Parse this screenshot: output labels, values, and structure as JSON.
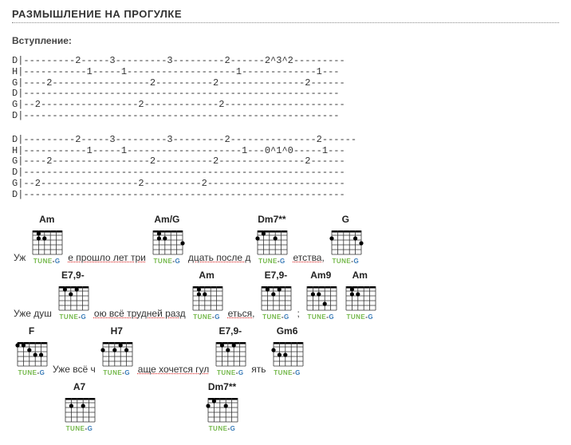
{
  "title": "РАЗМЫШЛЕНИЕ НА ПРОГУЛКЕ",
  "intro_label": "Вступление:",
  "tab1": "D|---------2-----3---------3---------2------2^3^2---------\nH|-----------1-----1-------------------1-------------1---\nG|----2-----------------2----------2---------------2------\nD|-------------------------------------------------------\nG|--2-----------------2-------------2---------------------\nD|-------------------------------------------------------",
  "tab2": "D|---------2-----3---------3---------2---------------2------\nH|-----------1-----1--------------------1---0^1^0-----1---\nG|----2-----------------2----------2---------------2------\nD|--------------------------------------------------------\nG|--2-----------------2----------2------------------------\nD|--------------------------------------------------------",
  "tuneg_text": "TUNE-G",
  "rows": [
    {
      "before": "",
      "items": [
        {
          "type": "lyric",
          "text": "Уж"
        },
        {
          "type": "chord",
          "name": "Am",
          "dots": [
            [
              0,
              1,
              2
            ],
            [
              1,
              2,
              3
            ],
            [
              2,
              2,
              2
            ]
          ]
        },
        {
          "type": "lyric",
          "text": "е прошло лет три",
          "red": true
        },
        {
          "type": "chord",
          "name": "Am/G",
          "dots": [
            [
              0,
              1,
              2
            ],
            [
              1,
              2,
              3
            ],
            [
              2,
              2,
              2
            ],
            [
              3,
              3,
              6
            ]
          ]
        },
        {
          "type": "lyric",
          "text": "дцать после д",
          "red": true
        },
        {
          "type": "chord",
          "name": "Dm7**",
          "dots": [
            [
              0,
              1,
              2
            ],
            [
              1,
              2,
              1
            ],
            [
              2,
              2,
              4
            ]
          ]
        },
        {
          "type": "lyric",
          "text": "етства,",
          "red": true
        },
        {
          "type": "chord",
          "name": "G",
          "dots": [
            [
              0,
              2,
              1
            ],
            [
              1,
              3,
              6
            ],
            [
              2,
              2,
              5
            ]
          ]
        }
      ]
    },
    {
      "before": "",
      "items": [
        {
          "type": "lyric",
          "text": "Уже душ"
        },
        {
          "type": "chord",
          "name": "E7,9-",
          "dots": [
            [
              0,
              1,
              4
            ],
            [
              1,
              2,
              3
            ],
            [
              2,
              1,
              2
            ]
          ]
        },
        {
          "type": "lyric",
          "text": "ою всё трудней разд",
          "red": true
        },
        {
          "type": "chord",
          "name": "Am",
          "dots": [
            [
              0,
              1,
              2
            ],
            [
              1,
              2,
              3
            ],
            [
              2,
              2,
              2
            ]
          ]
        },
        {
          "type": "lyric",
          "text": "еться,",
          "red": true
        },
        {
          "type": "chord",
          "name": "E7,9-",
          "dots": [
            [
              0,
              1,
              4
            ],
            [
              1,
              2,
              3
            ],
            [
              2,
              1,
              2
            ]
          ]
        },
        {
          "type": "lyric",
          "text": ";"
        },
        {
          "type": "chord",
          "name": "Am9",
          "dots": [
            [
              0,
              2,
              3
            ],
            [
              1,
              2,
              2
            ],
            [
              2,
              4,
              4
            ]
          ]
        },
        {
          "type": "chord",
          "name": "Am",
          "dots": [
            [
              0,
              1,
              2
            ],
            [
              1,
              2,
              3
            ],
            [
              2,
              2,
              2
            ]
          ]
        }
      ]
    },
    {
      "before": "",
      "items": [
        {
          "type": "chord",
          "name": "F",
          "dots": [
            [
              0,
              1,
              1
            ],
            [
              0,
              1,
              2
            ],
            [
              1,
              2,
              3
            ],
            [
              2,
              3,
              4
            ],
            [
              2,
              3,
              5
            ]
          ]
        },
        {
          "type": "lyric",
          "text": "Уже всё ч"
        },
        {
          "type": "chord",
          "name": "H7",
          "dots": [
            [
              0,
              1,
              4
            ],
            [
              1,
              2,
              1
            ],
            [
              1,
              2,
              3
            ],
            [
              1,
              2,
              5
            ]
          ]
        },
        {
          "type": "lyric",
          "text": "аще хочется гул",
          "red": true
        },
        {
          "type": "chord",
          "name": "E7,9-",
          "dots": [
            [
              0,
              1,
              4
            ],
            [
              1,
              2,
              3
            ],
            [
              2,
              1,
              2
            ]
          ]
        },
        {
          "type": "lyric",
          "text": "ять"
        },
        {
          "type": "chord",
          "name": "Gm6",
          "dots": [
            [
              0,
              2,
              1
            ],
            [
              1,
              3,
              3
            ],
            [
              2,
              3,
              2
            ]
          ]
        }
      ]
    },
    {
      "before": "",
      "items": [
        {
          "type": "spacer",
          "w": 60
        },
        {
          "type": "chord",
          "name": "A7",
          "dots": [
            [
              0,
              2,
              4
            ],
            [
              1,
              2,
              2
            ]
          ],
          "nodiag": false
        },
        {
          "type": "spacer",
          "w": 130
        },
        {
          "type": "chord",
          "name": "Dm7**",
          "dots": [
            [
              0,
              1,
              2
            ],
            [
              1,
              2,
              1
            ],
            [
              2,
              2,
              4
            ]
          ],
          "nodiag": false
        }
      ]
    }
  ],
  "diagram_style": {
    "frets": 5,
    "strings": 6,
    "grid_color": "#333",
    "dot_color": "#000",
    "nut_color": "#000"
  }
}
